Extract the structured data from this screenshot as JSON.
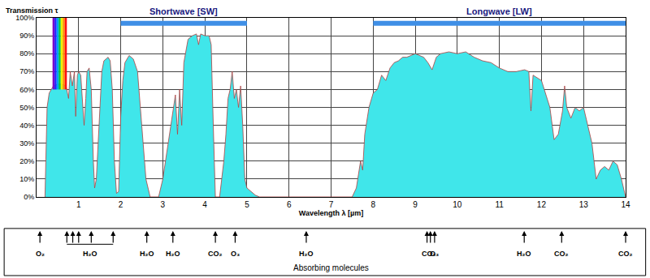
{
  "chart_data": {
    "type": "area",
    "y_label": "Transmission τ",
    "x_label": "Wavelength λ [µm]",
    "color": "#40e6ea",
    "x": [
      0.2,
      0.25,
      0.3,
      0.4,
      0.5,
      0.6,
      0.7,
      0.76,
      0.8,
      0.85,
      0.9,
      0.93,
      0.97,
      1.0,
      1.05,
      1.1,
      1.13,
      1.17,
      1.2,
      1.25,
      1.3,
      1.35,
      1.38,
      1.42,
      1.48,
      1.55,
      1.6,
      1.7,
      1.75,
      1.8,
      1.85,
      1.9,
      1.95,
      2.0,
      2.05,
      2.1,
      2.2,
      2.3,
      2.4,
      2.5,
      2.6,
      2.7,
      2.9,
      3.0,
      3.1,
      3.2,
      3.3,
      3.35,
      3.4,
      3.45,
      3.5,
      3.6,
      3.7,
      3.8,
      3.85,
      3.9,
      4.0,
      4.1,
      4.15,
      4.2,
      4.25,
      4.35,
      4.45,
      4.5,
      4.55,
      4.6,
      4.65,
      4.7,
      4.75,
      4.8,
      4.85,
      4.9,
      4.95,
      5.0,
      5.1,
      5.2,
      5.3,
      7.5,
      7.6,
      7.7,
      7.75,
      7.8,
      7.9,
      8.0,
      8.1,
      8.2,
      8.3,
      8.4,
      8.5,
      8.6,
      8.7,
      8.8,
      9.0,
      9.2,
      9.3,
      9.4,
      9.5,
      9.6,
      9.8,
      10.0,
      10.2,
      10.4,
      10.6,
      10.8,
      11.0,
      11.2,
      11.4,
      11.6,
      11.7,
      11.75,
      11.8,
      12.0,
      12.2,
      12.3,
      12.4,
      12.5,
      12.55,
      12.6,
      12.7,
      12.8,
      12.9,
      13.0,
      13.1,
      13.2,
      13.3,
      13.4,
      13.5,
      13.6,
      13.7,
      13.8,
      13.9,
      14.0
    ],
    "values": [
      0,
      50,
      58,
      62,
      63,
      63,
      62,
      55,
      70,
      62,
      70,
      45,
      68,
      70,
      68,
      50,
      40,
      55,
      70,
      72,
      60,
      20,
      5,
      10,
      40,
      70,
      76,
      78,
      76,
      60,
      20,
      2,
      3,
      45,
      65,
      75,
      79,
      77,
      70,
      40,
      10,
      0,
      0,
      10,
      25,
      40,
      57,
      35,
      60,
      40,
      75,
      88,
      90,
      91,
      85,
      91,
      90,
      90,
      85,
      40,
      0,
      0,
      20,
      35,
      55,
      60,
      70,
      55,
      60,
      50,
      62,
      40,
      10,
      5,
      3,
      1,
      0,
      0,
      5,
      20,
      15,
      35,
      50,
      58,
      60,
      68,
      65,
      72,
      75,
      76,
      78,
      78,
      80,
      78,
      75,
      71,
      78,
      80,
      81,
      80,
      81,
      78,
      76,
      75,
      72,
      70,
      70,
      71,
      70,
      48,
      68,
      65,
      50,
      32,
      35,
      48,
      62,
      50,
      44,
      50,
      48,
      50,
      40,
      30,
      10,
      15,
      17,
      15,
      20,
      18,
      10,
      0
    ],
    "xlim": [
      0,
      14
    ],
    "xticks": [
      1,
      2,
      3,
      4,
      5,
      6,
      7,
      8,
      9,
      10,
      11,
      12,
      13,
      14
    ],
    "ylim": [
      0,
      100
    ],
    "yticks": [
      {
        "value": 0,
        "label": "0%"
      },
      {
        "value": 10,
        "label": "10%"
      },
      {
        "value": 20,
        "label": "20%"
      },
      {
        "value": 30,
        "label": "30%"
      },
      {
        "value": 40,
        "label": "40%"
      },
      {
        "value": 50,
        "label": "50%"
      },
      {
        "value": 60,
        "label": "60%"
      },
      {
        "value": 70,
        "label": "70%"
      },
      {
        "value": 80,
        "label": "80%"
      },
      {
        "value": 90,
        "label": "90%"
      },
      {
        "value": 100,
        "label": "100%"
      }
    ],
    "grid": true,
    "bands": [
      {
        "label": "Shortwave [SW]",
        "x": [
          2,
          5
        ],
        "y": 97
      },
      {
        "label": "Longwave [LW]",
        "x": [
          8,
          14
        ],
        "y": 97
      }
    ],
    "visible_spectrum": {
      "x": [
        0.38,
        0.72
      ],
      "y": [
        60,
        100
      ]
    },
    "absorbers": {
      "label": "Absorbing molecules",
      "molecules": [
        {
          "label": "O₂",
          "x": [
            0.08
          ]
        },
        {
          "label": "H₂O",
          "x": [
            0.72,
            0.86,
            1.0,
            1.3,
            1.82
          ]
        },
        {
          "label": "H₂O",
          "x": [
            2.62
          ]
        },
        {
          "label": "H₂O",
          "x": [
            3.24
          ]
        },
        {
          "label": "CO₂",
          "x": [
            4.25
          ]
        },
        {
          "label": "O₃",
          "x": [
            4.72
          ]
        },
        {
          "label": "H₂O",
          "x": [
            6.41
          ]
        },
        {
          "label": "CO₂",
          "x": [
            9.28,
            9.36
          ]
        },
        {
          "label": "O₃",
          "x": [
            9.46
          ]
        },
        {
          "label": "H₂O",
          "x": [
            11.59
          ]
        },
        {
          "label": "CO₂",
          "x": [
            12.48
          ]
        },
        {
          "label": "CO₂",
          "x": [
            14.0
          ]
        }
      ]
    }
  }
}
